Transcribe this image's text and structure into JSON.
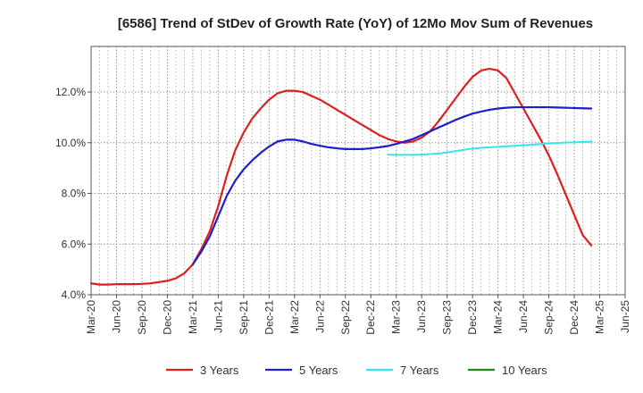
{
  "chart_data": {
    "type": "line",
    "title": "[6586]  Trend of StDev of Growth Rate (YoY) of 12Mo Mov Sum of Revenues",
    "xlabel": "",
    "ylabel": "",
    "x_ticks": [
      "Mar-20",
      "Jun-20",
      "Sep-20",
      "Dec-20",
      "Mar-21",
      "Jun-21",
      "Sep-21",
      "Dec-21",
      "Mar-22",
      "Jun-22",
      "Sep-22",
      "Dec-22",
      "Mar-23",
      "Jun-23",
      "Sep-23",
      "Dec-23",
      "Mar-24",
      "Jun-24",
      "Sep-24",
      "Dec-24",
      "Mar-25",
      "Jun-25"
    ],
    "y_ticks": [
      "4.0%",
      "6.0%",
      "8.0%",
      "10.0%",
      "12.0%"
    ],
    "ylim": [
      4.0,
      13.8
    ],
    "grid": true,
    "legend_position": "bottom",
    "series": [
      {
        "name": "3 Years",
        "color": "#dd1f1f",
        "x": [
          0,
          1,
          2,
          3,
          4,
          5,
          6,
          7,
          8,
          9,
          10,
          11,
          12,
          13,
          14,
          15,
          16,
          17,
          18,
          19,
          20,
          21,
          22,
          23,
          24,
          25,
          26,
          27,
          28,
          29,
          30,
          31,
          32,
          33,
          34,
          35,
          36,
          37,
          38,
          39,
          40,
          41,
          42,
          43,
          44,
          45,
          46,
          47,
          48,
          49,
          50,
          51,
          52,
          53,
          54,
          55,
          56,
          57,
          58,
          59,
          60
        ],
        "values": [
          4.45,
          4.4,
          4.4,
          4.42,
          4.42,
          4.42,
          4.43,
          4.45,
          4.5,
          4.55,
          4.65,
          4.85,
          5.2,
          5.8,
          6.5,
          7.5,
          8.7,
          9.7,
          10.4,
          10.95,
          11.35,
          11.7,
          11.95,
          12.05,
          12.05,
          12.0,
          11.85,
          11.7,
          11.5,
          11.3,
          11.1,
          10.9,
          10.7,
          10.5,
          10.3,
          10.15,
          10.05,
          10.0,
          10.05,
          10.2,
          10.45,
          10.85,
          11.3,
          11.75,
          12.2,
          12.6,
          12.85,
          12.92,
          12.85,
          12.55,
          11.95,
          11.35,
          10.75,
          10.15,
          9.5,
          8.75,
          7.95,
          7.15,
          6.35,
          5.95,
          null
        ],
        "line_width": 2.2
      },
      {
        "name": "5 Years",
        "color": "#1d1fc8",
        "x": [
          12,
          13,
          14,
          15,
          16,
          17,
          18,
          19,
          20,
          21,
          22,
          23,
          24,
          25,
          26,
          27,
          28,
          29,
          30,
          31,
          32,
          33,
          34,
          35,
          36,
          37,
          38,
          39,
          40,
          41,
          42,
          43,
          44,
          45,
          46,
          47,
          48,
          49,
          50,
          51,
          52,
          53,
          54,
          55,
          56,
          57,
          58,
          59,
          60
        ],
        "values": [
          5.2,
          5.7,
          6.3,
          7.1,
          7.9,
          8.5,
          8.95,
          9.3,
          9.6,
          9.85,
          10.05,
          10.12,
          10.12,
          10.05,
          9.95,
          9.88,
          9.82,
          9.78,
          9.75,
          9.75,
          9.75,
          9.78,
          9.82,
          9.87,
          9.95,
          10.05,
          10.15,
          10.3,
          10.45,
          10.6,
          10.75,
          10.9,
          11.03,
          11.15,
          11.23,
          11.3,
          11.35,
          11.38,
          11.4,
          11.4,
          11.4,
          11.4,
          11.4,
          11.39,
          11.38,
          11.37,
          11.36,
          11.35,
          null
        ],
        "line_width": 2.2
      },
      {
        "name": "7 Years",
        "color": "#38e6ea",
        "x": [
          35,
          36,
          37,
          38,
          39,
          40,
          41,
          42,
          43,
          44,
          45,
          46,
          47,
          48,
          49,
          50,
          51,
          52,
          53,
          54,
          55,
          56,
          57,
          58,
          59,
          60
        ],
        "values": [
          9.53,
          9.52,
          9.52,
          9.52,
          9.53,
          9.55,
          9.58,
          9.62,
          9.67,
          9.72,
          9.77,
          9.8,
          9.82,
          9.84,
          9.86,
          9.88,
          9.9,
          9.92,
          9.95,
          9.97,
          9.99,
          10.01,
          10.02,
          10.03,
          10.04,
          null
        ],
        "line_width": 2.0
      },
      {
        "name": "10 Years",
        "color": "#1e8c1e",
        "x": [],
        "values": [],
        "line_width": 2.0
      }
    ]
  }
}
